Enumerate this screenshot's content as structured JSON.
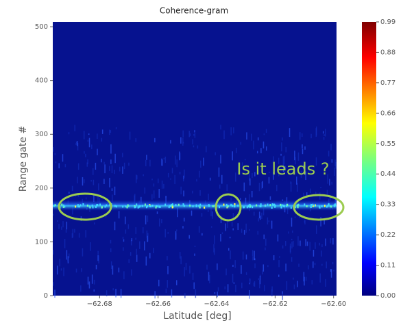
{
  "chart_data": {
    "type": "heatmap",
    "title": "Coherence-gram",
    "xlabel": "Latitude [deg]",
    "ylabel": "Range gate #",
    "xlim": [
      -62.696,
      -62.599
    ],
    "ylim": [
      0,
      509
    ],
    "xticks": [
      {
        "value": -62.68,
        "label": "−62.68"
      },
      {
        "value": -62.66,
        "label": "−62.66"
      },
      {
        "value": -62.64,
        "label": "−62.64"
      },
      {
        "value": -62.62,
        "label": "−62.62"
      },
      {
        "value": -62.6,
        "label": "−62.60"
      }
    ],
    "yticks": [
      0,
      100,
      200,
      300,
      400,
      500
    ],
    "colormap": "jet",
    "clim": [
      0,
      0.99
    ],
    "cticks": [
      {
        "value": 0,
        "label": "0.00"
      },
      0.11,
      0.22,
      0.33,
      0.44,
      0.55,
      0.66,
      0.77,
      0.88,
      0.99
    ],
    "annotation": "Is it leads ?",
    "annotation_color": "#9ccc50"
  }
}
